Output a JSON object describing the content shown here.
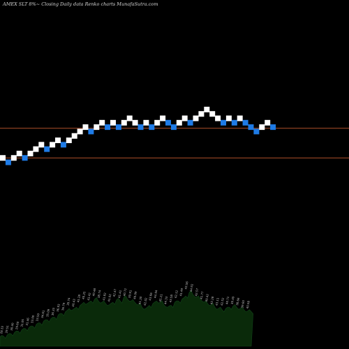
{
  "chart_data": {
    "type": "renko",
    "title": "AMEX  SLT 8%~  Closing Daily data  Renko  charts MunafaSutra.com",
    "colors": {
      "background": "#000000",
      "up_brick": "#ffffff",
      "down_brick": "#1e7be6",
      "reference_line": "#b0502a",
      "volume_fill": "#0a2a0a",
      "volume_stroke": "#12461a"
    },
    "reference_lines": [
      62.3,
      56.9
    ],
    "ylim": [
      45,
      78
    ],
    "bricks": [
      {
        "close": 56.9,
        "dir": "up"
      },
      {
        "close": 56.1,
        "dir": "down"
      },
      {
        "close": 56.9,
        "dir": "up"
      },
      {
        "close": 57.7,
        "dir": "up"
      },
      {
        "close": 56.9,
        "dir": "down"
      },
      {
        "close": 57.7,
        "dir": "up"
      },
      {
        "close": 58.5,
        "dir": "up"
      },
      {
        "close": 59.3,
        "dir": "up"
      },
      {
        "close": 58.5,
        "dir": "down"
      },
      {
        "close": 59.3,
        "dir": "up"
      },
      {
        "close": 60.1,
        "dir": "up"
      },
      {
        "close": 59.3,
        "dir": "down"
      },
      {
        "close": 60.1,
        "dir": "up"
      },
      {
        "close": 60.9,
        "dir": "up"
      },
      {
        "close": 61.7,
        "dir": "up"
      },
      {
        "close": 62.5,
        "dir": "up"
      },
      {
        "close": 61.7,
        "dir": "down"
      },
      {
        "close": 62.5,
        "dir": "up"
      },
      {
        "close": 63.3,
        "dir": "up"
      },
      {
        "close": 62.5,
        "dir": "down"
      },
      {
        "close": 63.3,
        "dir": "up"
      },
      {
        "close": 62.5,
        "dir": "down"
      },
      {
        "close": 63.3,
        "dir": "up"
      },
      {
        "close": 64.1,
        "dir": "up"
      },
      {
        "close": 63.3,
        "dir": "up"
      },
      {
        "close": 62.5,
        "dir": "down"
      },
      {
        "close": 63.3,
        "dir": "up"
      },
      {
        "close": 62.5,
        "dir": "down"
      },
      {
        "close": 63.3,
        "dir": "up"
      },
      {
        "close": 64.1,
        "dir": "up"
      },
      {
        "close": 63.3,
        "dir": "down"
      },
      {
        "close": 62.5,
        "dir": "down"
      },
      {
        "close": 63.3,
        "dir": "up"
      },
      {
        "close": 64.1,
        "dir": "up"
      },
      {
        "close": 63.3,
        "dir": "down"
      },
      {
        "close": 64.1,
        "dir": "up"
      },
      {
        "close": 64.9,
        "dir": "up"
      },
      {
        "close": 65.7,
        "dir": "up"
      },
      {
        "close": 64.9,
        "dir": "up"
      },
      {
        "close": 64.1,
        "dir": "up"
      },
      {
        "close": 63.3,
        "dir": "down"
      },
      {
        "close": 64.1,
        "dir": "up"
      },
      {
        "close": 63.3,
        "dir": "down"
      },
      {
        "close": 64.1,
        "dir": "up"
      },
      {
        "close": 63.3,
        "dir": "down"
      },
      {
        "close": 62.5,
        "dir": "down"
      },
      {
        "close": 61.7,
        "dir": "down"
      },
      {
        "close": 62.5,
        "dir": "up"
      },
      {
        "close": 63.3,
        "dir": "up"
      },
      {
        "close": 62.5,
        "dir": "down"
      }
    ],
    "volume": [
      0.15,
      0.16,
      0.18,
      0.2,
      0.22,
      0.24,
      0.26,
      0.28,
      0.3,
      0.32,
      0.35,
      0.37,
      0.4,
      0.42,
      0.44,
      0.46,
      0.5,
      0.52,
      0.55,
      0.6,
      0.58,
      0.62,
      0.65,
      0.7,
      0.68,
      0.72,
      0.75,
      0.72,
      0.7,
      0.68,
      0.66,
      0.7,
      0.74,
      0.72,
      0.78,
      0.75,
      0.72,
      0.7,
      0.66,
      0.62,
      0.6,
      0.65,
      0.68,
      0.72,
      0.7,
      0.66,
      0.62,
      0.65,
      0.7,
      0.72,
      0.75,
      0.8,
      0.86,
      0.82,
      0.78,
      0.75,
      0.7,
      0.68,
      0.66,
      0.62,
      0.6,
      0.58,
      0.6,
      0.62,
      0.64,
      0.62,
      0.6,
      0.58,
      0.56,
      0.55
    ],
    "volume_labels": [
      "28.33",
      "29.51",
      "30.40",
      "29.60",
      "31.05",
      "31.46",
      "33.00",
      "33.50",
      "34.61",
      "35.09",
      "36.33",
      "36.93",
      "36.79",
      "39.74",
      "40.43",
      "41.28",
      "40.25",
      "41.42",
      "40.48",
      "38.74",
      "41.82",
      "41.92",
      "42.47",
      "41.41",
      "40.72",
      "39.91",
      "40.09",
      "41.30",
      "42.02",
      "43.66",
      "44.94",
      "45.21",
      "44.33",
      "43.58",
      "42.12",
      "41.49",
      "43.56",
      "44.92",
      "42.57",
      "41.77",
      "40.42",
      "42.28",
      "43.11",
      "42.52",
      "40.71",
      "39.49",
      "38.66",
      "39.60",
      "40.58"
    ]
  }
}
